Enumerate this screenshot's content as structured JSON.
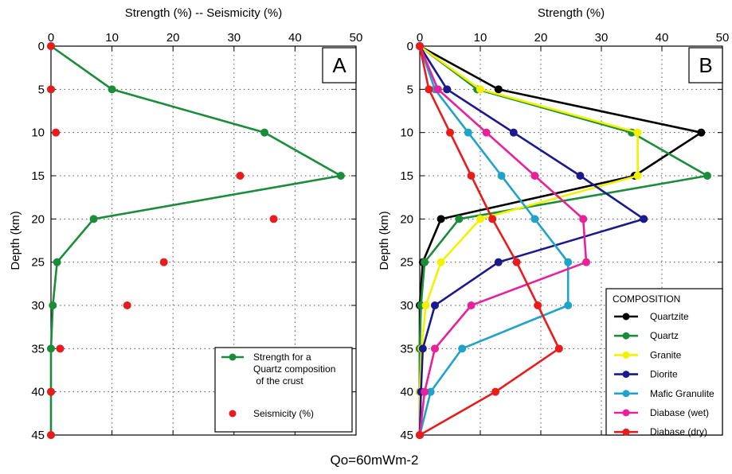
{
  "footer_text": "Qo=60mWm-2",
  "colors": {
    "Quartzite": "#000000",
    "Quartz": "#1a8c3a",
    "Granite": "#f2f200",
    "Diorite": "#1a1a8c",
    "Mafic Granulite": "#1fa3c9",
    "Diabase (wet)": "#e8219a",
    "Diabase (dry)": "#e81c1c",
    "Seismicity": "#e81c1c",
    "Strength": "#1a8c3a"
  },
  "chart_data": [
    {
      "type": "line",
      "panel_label": "A",
      "title": "Strength (%) -- Seismicity (%)",
      "xlabel": "Strength (%) -- Seismicity (%)",
      "ylabel": "Depth (km)",
      "xlim": [
        0,
        50
      ],
      "ylim": [
        45,
        0
      ],
      "x_ticks": [
        "0",
        "10",
        "20",
        "30",
        "40",
        "50"
      ],
      "y_ticks": [
        "0",
        "5",
        "10",
        "15",
        "20",
        "25",
        "30",
        "35",
        "40",
        "45"
      ],
      "grid": true,
      "legend_position": "bottom-right",
      "series": [
        {
          "name": "Strength for a Quartz composition of the crust",
          "legend_lines": [
            "Strength for a",
            "Quartz composition",
            " of the crust"
          ],
          "mode": "line+markers",
          "color": "#1a8c3a",
          "points": [
            [
              0,
              0
            ],
            [
              10,
              5
            ],
            [
              35,
              10
            ],
            [
              47.5,
              15
            ],
            [
              7,
              20
            ],
            [
              1,
              25
            ],
            [
              0.3,
              30
            ],
            [
              0,
              35
            ],
            [
              0,
              40
            ],
            [
              0,
              45
            ]
          ]
        },
        {
          "name": "Seismicity (%)",
          "legend_lines": [
            "Seismicity (%)"
          ],
          "mode": "markers",
          "color": "#e81c1c",
          "points": [
            [
              0,
              0
            ],
            [
              0,
              5
            ],
            [
              0.8,
              10
            ],
            [
              31,
              15
            ],
            [
              36.5,
              20
            ],
            [
              18.5,
              25
            ],
            [
              12.5,
              30
            ],
            [
              1.5,
              35
            ],
            [
              0,
              40
            ],
            [
              0,
              45
            ]
          ]
        }
      ]
    },
    {
      "type": "line",
      "panel_label": "B",
      "title": "Strength (%)",
      "xlabel": "Strength (%)",
      "ylabel": "Depth (km)",
      "xlim": [
        0,
        50
      ],
      "ylim": [
        45,
        0
      ],
      "x_ticks": [
        "0",
        "10",
        "20",
        "30",
        "40",
        "50"
      ],
      "y_ticks": [
        "0",
        "5",
        "10",
        "15",
        "20",
        "25",
        "30",
        "35",
        "40",
        "45"
      ],
      "grid": true,
      "legend_title": "COMPOSITION",
      "legend_position": "bottom-right",
      "series": [
        {
          "name": "Quartzite",
          "color": "#000000",
          "points": [
            [
              0,
              0
            ],
            [
              13,
              5
            ],
            [
              46.5,
              10
            ],
            [
              35.5,
              15
            ],
            [
              3.5,
              20
            ],
            [
              0.5,
              25
            ],
            [
              0,
              30
            ],
            [
              0,
              35
            ],
            [
              0,
              40
            ],
            [
              0,
              45
            ]
          ]
        },
        {
          "name": "Quartz",
          "color": "#1a8c3a",
          "points": [
            [
              0,
              0
            ],
            [
              9.5,
              5
            ],
            [
              35,
              10
            ],
            [
              47.5,
              15
            ],
            [
              6.5,
              20
            ],
            [
              0.8,
              25
            ],
            [
              0.2,
              30
            ],
            [
              0,
              35
            ],
            [
              0,
              40
            ],
            [
              0,
              45
            ]
          ]
        },
        {
          "name": "Granite",
          "color": "#f2f200",
          "points": [
            [
              0,
              0
            ],
            [
              10,
              5
            ],
            [
              36,
              10
            ],
            [
              36,
              15
            ],
            [
              10,
              20
            ],
            [
              3.5,
              25
            ],
            [
              1,
              30
            ],
            [
              0.3,
              35
            ],
            [
              0,
              40
            ],
            [
              0,
              45
            ]
          ]
        },
        {
          "name": "Diorite",
          "color": "#1a1a8c",
          "points": [
            [
              0,
              0
            ],
            [
              4.5,
              5
            ],
            [
              15.5,
              10
            ],
            [
              26.5,
              15
            ],
            [
              37,
              20
            ],
            [
              13,
              25
            ],
            [
              2.5,
              30
            ],
            [
              0.5,
              35
            ],
            [
              0.2,
              40
            ],
            [
              0,
              45
            ]
          ]
        },
        {
          "name": "Mafic Granulite",
          "color": "#1fa3c9",
          "points": [
            [
              0,
              0
            ],
            [
              2.5,
              5
            ],
            [
              8,
              10
            ],
            [
              13.5,
              15
            ],
            [
              19,
              20
            ],
            [
              24.5,
              25
            ],
            [
              24.5,
              30
            ],
            [
              7,
              35
            ],
            [
              1.8,
              40
            ],
            [
              0,
              45
            ]
          ]
        },
        {
          "name": "Diabase (wet)",
          "color": "#e8219a",
          "points": [
            [
              0,
              0
            ],
            [
              3,
              5
            ],
            [
              11,
              10
            ],
            [
              19,
              15
            ],
            [
              27,
              20
            ],
            [
              27.5,
              25
            ],
            [
              8.5,
              30
            ],
            [
              2.5,
              35
            ],
            [
              0.8,
              40
            ],
            [
              0,
              45
            ]
          ]
        },
        {
          "name": "Diabase (dry)",
          "color": "#e81c1c",
          "points": [
            [
              0,
              0
            ],
            [
              1.5,
              5
            ],
            [
              5,
              10
            ],
            [
              8.5,
              15
            ],
            [
              12,
              20
            ],
            [
              16,
              25
            ],
            [
              19.5,
              30
            ],
            [
              23,
              35
            ],
            [
              12.5,
              40
            ],
            [
              0,
              45
            ]
          ]
        }
      ]
    }
  ]
}
